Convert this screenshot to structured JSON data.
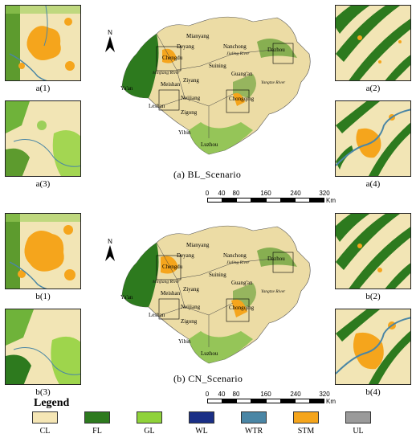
{
  "panels": [
    {
      "scenario_label": "(a)  BL_Scenario",
      "insets": [
        "a(1)",
        "a(2)",
        "a(3)",
        "a(4)"
      ]
    },
    {
      "scenario_label": "(b)  CN_Scenario",
      "insets": [
        "b(1)",
        "b(2)",
        "b(3)",
        "b(4)"
      ]
    }
  ],
  "cities": [
    "Mianyang",
    "Deyang",
    "Nanchong",
    "Dazhou",
    "Chengdu",
    "Suining",
    "Jialing River",
    "Guang'an",
    "Minjiang River",
    "Yangtze River",
    "Ziyang",
    "Meishan",
    "Ya'an",
    "Leshan",
    "Neijiang",
    "Chongqing",
    "Zigong",
    "Yibin",
    "Luzhou"
  ],
  "north_label": "N",
  "scale": {
    "ticks": [
      "0",
      "40",
      "80",
      "160",
      "240",
      "320"
    ],
    "unit": "Km"
  },
  "legend": {
    "title": "Legend",
    "items": [
      {
        "label": "CL",
        "color": "#f5e6b5"
      },
      {
        "label": "FL",
        "color": "#2d7a1e"
      },
      {
        "label": "GL",
        "color": "#8fd23a"
      },
      {
        "label": "WL",
        "color": "#1a2f86"
      },
      {
        "label": "WTR",
        "color": "#4a86a5"
      },
      {
        "label": "STM",
        "color": "#f5a51c"
      },
      {
        "label": "UL",
        "color": "#9a9a9a"
      }
    ]
  }
}
